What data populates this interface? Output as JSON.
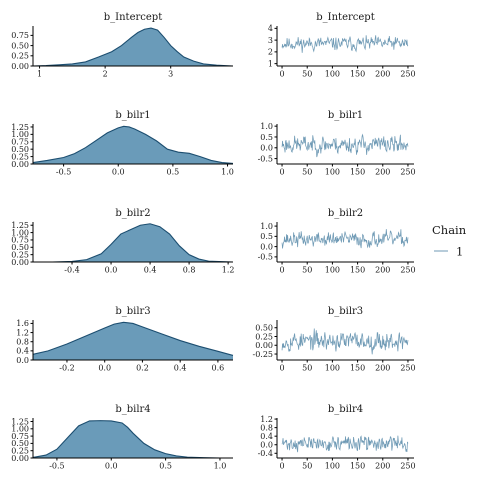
{
  "legend": {
    "title": "Chain",
    "items": [
      {
        "label": "1",
        "color": "#6f9ab5"
      }
    ],
    "placement": "right"
  },
  "colors": {
    "density_fill": "#6a9bb9",
    "density_line": "#1c4e70",
    "trace_line": "#6f9ab5",
    "axis": "#000000"
  },
  "chart_data": [
    {
      "type": "area",
      "panel": "density",
      "param": "b_Intercept",
      "title": "b_Intercept",
      "xlim": [
        0.9,
        3.95
      ],
      "ylim": [
        0,
        0.98
      ],
      "xticks": [
        1,
        2,
        3
      ],
      "xtick_labels": [
        "1",
        "2",
        "3"
      ],
      "yticks": [
        0,
        0.25,
        0.5,
        0.75
      ],
      "ytick_labels": [
        "0.00",
        "0.25",
        "0.50",
        "0.75"
      ],
      "x": [
        0.9,
        1.1,
        1.3,
        1.5,
        1.7,
        1.9,
        2.1,
        2.25,
        2.4,
        2.5,
        2.6,
        2.7,
        2.8,
        2.9,
        3.0,
        3.1,
        3.2,
        3.35,
        3.5,
        3.7,
        3.95
      ],
      "y": [
        0.0,
        0.01,
        0.03,
        0.05,
        0.1,
        0.22,
        0.35,
        0.5,
        0.7,
        0.82,
        0.9,
        0.93,
        0.88,
        0.7,
        0.5,
        0.35,
        0.22,
        0.12,
        0.05,
        0.02,
        0.0
      ]
    },
    {
      "type": "line",
      "panel": "trace",
      "param": "b_Intercept",
      "title": "b_Intercept",
      "xlim": [
        -10,
        262
      ],
      "ylim": [
        0.8,
        4.2
      ],
      "xticks": [
        0,
        50,
        100,
        150,
        200,
        250
      ],
      "xtick_labels": [
        "0",
        "50",
        "100",
        "150",
        "200",
        "250"
      ],
      "yticks": [
        1,
        2,
        3,
        4
      ],
      "ytick_labels": [
        "1",
        "2",
        "3",
        "4"
      ],
      "center": 2.7,
      "spread": 0.42,
      "min": 1.0,
      "max": 4.0,
      "seed": 11
    },
    {
      "type": "area",
      "panel": "density",
      "param": "b_bilr1",
      "title": "b_bilr1",
      "xlim": [
        -0.78,
        1.05
      ],
      "ylim": [
        0,
        1.35
      ],
      "xticks": [
        -0.5,
        0.0,
        0.5,
        1.0
      ],
      "xtick_labels": [
        "-0.5",
        "0.0",
        "0.5",
        "1.0"
      ],
      "yticks": [
        0,
        0.25,
        0.5,
        0.75,
        1.0,
        1.25
      ],
      "ytick_labels": [
        "0.00",
        "0.25",
        "0.50",
        "0.75",
        "1.00",
        "1.25"
      ],
      "x": [
        -0.78,
        -0.65,
        -0.5,
        -0.4,
        -0.3,
        -0.2,
        -0.1,
        0.0,
        0.05,
        0.1,
        0.15,
        0.25,
        0.35,
        0.45,
        0.55,
        0.65,
        0.75,
        0.85,
        0.95,
        1.05
      ],
      "y": [
        0.05,
        0.12,
        0.22,
        0.35,
        0.55,
        0.8,
        1.05,
        1.22,
        1.27,
        1.25,
        1.18,
        1.0,
        0.78,
        0.5,
        0.4,
        0.36,
        0.25,
        0.12,
        0.05,
        0.02
      ]
    },
    {
      "type": "line",
      "panel": "trace",
      "param": "b_bilr1",
      "title": "b_bilr1",
      "xlim": [
        -10,
        262
      ],
      "ylim": [
        -0.75,
        1.1
      ],
      "xticks": [
        0,
        50,
        100,
        150,
        200,
        250
      ],
      "xtick_labels": [
        "0",
        "50",
        "100",
        "150",
        "200",
        "250"
      ],
      "yticks": [
        -0.5,
        0.0,
        0.5,
        1.0
      ],
      "ytick_labels": [
        "-0.5",
        "0.0",
        "0.5",
        "1.0"
      ],
      "center": 0.15,
      "spread": 0.3,
      "min": -0.65,
      "max": 1.0,
      "seed": 23
    },
    {
      "type": "area",
      "panel": "density",
      "param": "b_bilr2",
      "title": "b_bilr2",
      "xlim": [
        -0.8,
        1.25
      ],
      "ylim": [
        0,
        1.36
      ],
      "xticks": [
        -0.4,
        0.0,
        0.4,
        0.8,
        1.2
      ],
      "xtick_labels": [
        "-0.4",
        "0.0",
        "0.4",
        "0.8",
        "1.2"
      ],
      "yticks": [
        0,
        0.25,
        0.5,
        0.75,
        1.0,
        1.25
      ],
      "ytick_labels": [
        "0.00",
        "0.25",
        "0.50",
        "0.75",
        "1.00",
        "1.25"
      ],
      "x": [
        -0.8,
        -0.6,
        -0.4,
        -0.25,
        -0.1,
        0.0,
        0.1,
        0.2,
        0.3,
        0.4,
        0.5,
        0.6,
        0.7,
        0.8,
        0.9,
        1.0,
        1.25
      ],
      "y": [
        0.0,
        0.0,
        0.02,
        0.08,
        0.28,
        0.6,
        0.95,
        1.1,
        1.25,
        1.3,
        1.2,
        0.95,
        0.55,
        0.25,
        0.1,
        0.03,
        0.0
      ]
    },
    {
      "type": "line",
      "panel": "trace",
      "param": "b_bilr2",
      "title": "b_bilr2",
      "xlim": [
        -10,
        262
      ],
      "ylim": [
        -0.75,
        1.2
      ],
      "xticks": [
        0,
        50,
        100,
        150,
        200,
        250
      ],
      "xtick_labels": [
        "0",
        "50",
        "100",
        "150",
        "200",
        "250"
      ],
      "yticks": [
        -0.5,
        0.0,
        0.5,
        1.0
      ],
      "ytick_labels": [
        "-0.5",
        "0.0",
        "0.5",
        "1.0"
      ],
      "center": 0.35,
      "spread": 0.27,
      "min": -0.65,
      "max": 1.1,
      "seed": 37
    },
    {
      "type": "area",
      "panel": "density",
      "param": "b_bilr3",
      "title": "b_bilr3",
      "xlim": [
        -0.38,
        0.68
      ],
      "ylim": [
        0,
        1.75
      ],
      "xticks": [
        -0.2,
        0.0,
        0.2,
        0.4,
        0.6
      ],
      "xtick_labels": [
        "-0.2",
        "0.0",
        "0.2",
        "0.4",
        "0.6"
      ],
      "yticks": [
        0,
        0.4,
        0.8,
        1.2,
        1.6
      ],
      "ytick_labels": [
        "0.0",
        "0.4",
        "0.8",
        "1.2",
        "1.6"
      ],
      "x": [
        -0.38,
        -0.3,
        -0.2,
        -0.1,
        0.0,
        0.05,
        0.1,
        0.15,
        0.2,
        0.3,
        0.4,
        0.5,
        0.6,
        0.68
      ],
      "y": [
        0.25,
        0.4,
        0.7,
        1.05,
        1.4,
        1.57,
        1.65,
        1.6,
        1.45,
        1.15,
        0.85,
        0.6,
        0.38,
        0.2
      ]
    },
    {
      "type": "line",
      "panel": "trace",
      "param": "b_bilr3",
      "title": "b_bilr3",
      "xlim": [
        -10,
        262
      ],
      "ylim": [
        -0.42,
        0.72
      ],
      "xticks": [
        0,
        50,
        100,
        150,
        200,
        250
      ],
      "xtick_labels": [
        "0",
        "50",
        "100",
        "150",
        "200",
        "250"
      ],
      "yticks": [
        -0.25,
        0.0,
        0.25,
        0.5
      ],
      "ytick_labels": [
        "-0.25",
        "0.00",
        "0.25",
        "0.50"
      ],
      "center": 0.12,
      "spread": 0.2,
      "min": -0.35,
      "max": 0.65,
      "seed": 53
    },
    {
      "type": "area",
      "panel": "density",
      "param": "b_bilr4",
      "title": "b_bilr4",
      "xlim": [
        -0.72,
        1.12
      ],
      "ylim": [
        0,
        1.37
      ],
      "xticks": [
        -0.5,
        0.0,
        0.5,
        1.0
      ],
      "xtick_labels": [
        "-0.5",
        "0.0",
        "0.5",
        "1.0"
      ],
      "yticks": [
        0,
        0.25,
        0.5,
        0.75,
        1.0,
        1.25
      ],
      "ytick_labels": [
        "0.00",
        "0.25",
        "0.50",
        "0.75",
        "1.00",
        "1.25"
      ],
      "x": [
        -0.72,
        -0.6,
        -0.5,
        -0.4,
        -0.3,
        -0.2,
        -0.1,
        0.0,
        0.1,
        0.15,
        0.2,
        0.3,
        0.4,
        0.5,
        0.6,
        0.7,
        0.85,
        1.0,
        1.12
      ],
      "y": [
        0.02,
        0.1,
        0.3,
        0.7,
        1.1,
        1.27,
        1.28,
        1.27,
        1.2,
        1.05,
        0.85,
        0.5,
        0.28,
        0.15,
        0.07,
        0.03,
        0.01,
        0.0,
        0.0
      ]
    },
    {
      "type": "line",
      "panel": "trace",
      "param": "b_bilr4",
      "title": "b_bilr4",
      "xlim": [
        -10,
        262
      ],
      "ylim": [
        -0.62,
        1.25
      ],
      "xticks": [
        0,
        50,
        100,
        150,
        200,
        250
      ],
      "xtick_labels": [
        "0",
        "50",
        "100",
        "150",
        "200",
        "250"
      ],
      "yticks": [
        -0.4,
        0.0,
        0.4,
        0.8,
        1.2
      ],
      "ytick_labels": [
        "-0.4",
        "0.0",
        "0.4",
        "0.8",
        "1.2"
      ],
      "center": 0.05,
      "spread": 0.25,
      "min": -0.5,
      "max": 1.05,
      "seed": 71
    }
  ]
}
